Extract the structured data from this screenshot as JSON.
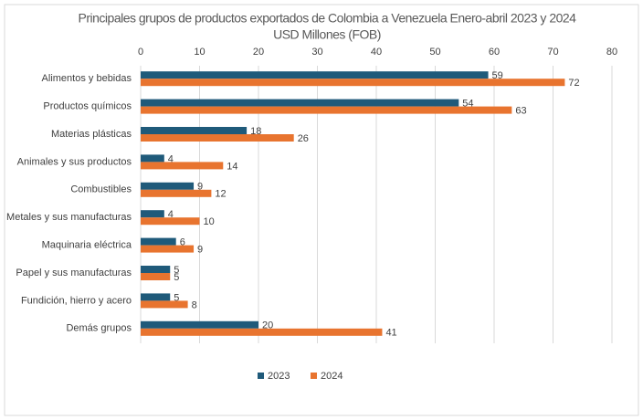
{
  "chart_data": {
    "type": "bar",
    "orientation": "horizontal",
    "title": "Principales grupos de productos exportados de Colombia a Venezuela Enero-abril 2023 y 2024",
    "subtitle": "USD Millones (FOB)",
    "categories": [
      "Alimentos y bebidas",
      "Productos químicos",
      "Materias plásticas",
      "Animales y sus productos",
      "Combustibles",
      "Metales y sus manufacturas",
      "Maquinaria eléctrica",
      "Papel y sus manufacturas",
      "Fundición, hierro y acero",
      "Demás grupos"
    ],
    "series": [
      {
        "name": "2023",
        "color": "#1f5a7a",
        "values": [
          59,
          54,
          18,
          4,
          9,
          4,
          6,
          5,
          5,
          20
        ]
      },
      {
        "name": "2024",
        "color": "#e8742f",
        "values": [
          72,
          63,
          26,
          14,
          12,
          10,
          9,
          5,
          8,
          41
        ]
      }
    ],
    "xlim": [
      0,
      80
    ],
    "xticks": [
      0,
      10,
      20,
      30,
      40,
      50,
      60,
      70,
      80
    ],
    "grid": true,
    "legend": "bottom"
  }
}
